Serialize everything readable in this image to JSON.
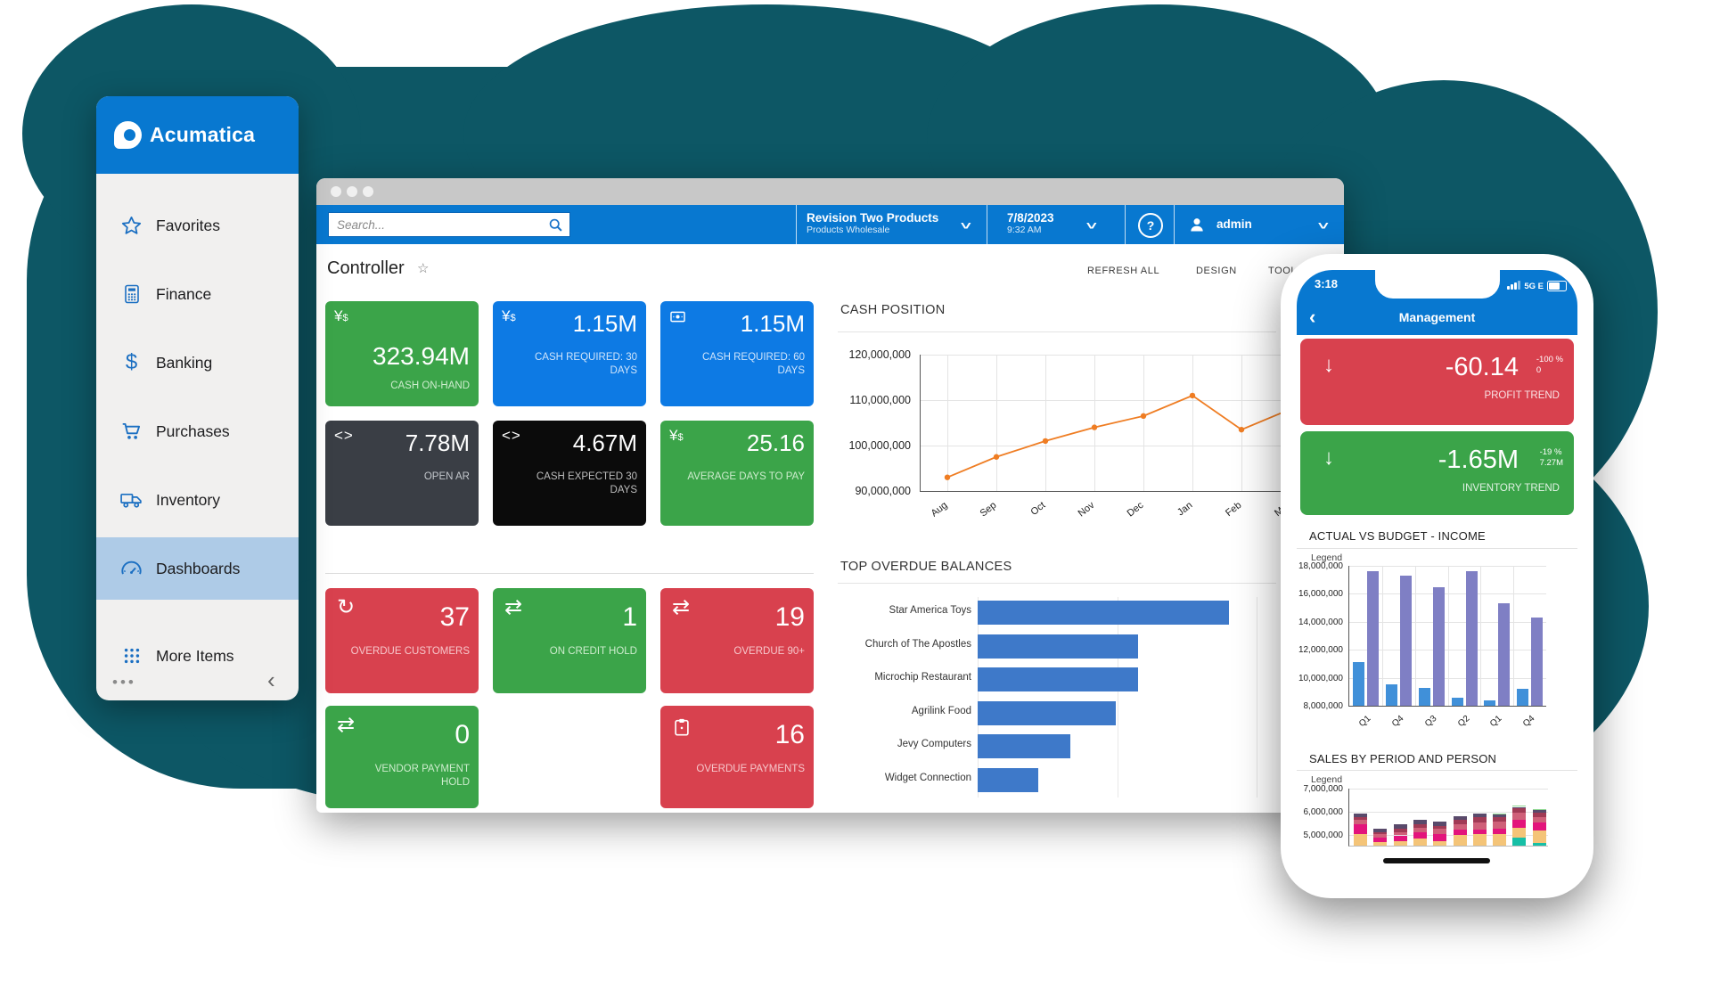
{
  "colors": {
    "brand_blue": "#0878d0",
    "backdrop_teal": "#0d5765",
    "tile_green": "#3ba449",
    "tile_blue": "#0d7ae4",
    "tile_slate": "#3a3e45",
    "tile_black": "#0b0b0b",
    "tile_red": "#d8414e",
    "selected_sidebar": "#aecbe7"
  },
  "app": {
    "brand": "Acumatica"
  },
  "sidebar": {
    "selected_index": 5,
    "items": [
      {
        "label": "Favorites",
        "icon": "star"
      },
      {
        "label": "Finance",
        "icon": "calculator"
      },
      {
        "label": "Banking",
        "icon": "dollar"
      },
      {
        "label": "Purchases",
        "icon": "cart"
      },
      {
        "label": "Inventory",
        "icon": "truck"
      },
      {
        "label": "Dashboards",
        "icon": "gauge"
      },
      {
        "label": "More Items",
        "icon": "grid"
      }
    ],
    "footer_dots": "•••",
    "collapse_glyph": "‹"
  },
  "window": {
    "search_placeholder": "Search...",
    "tenant": {
      "name": "Revision Two Products",
      "sub": "Products Wholesale"
    },
    "datetime": {
      "date": "7/8/2023",
      "time": "9:32 AM"
    },
    "help_glyph": "?",
    "user": "admin",
    "toolbar": [
      "REFRESH ALL",
      "DESIGN",
      "TOOLS"
    ],
    "page_title": "Controller",
    "star_glyph": "☆"
  },
  "kpi_top": [
    {
      "value": "323.94M",
      "label": "CASH ON-HAND",
      "icon": "currency",
      "style": "green",
      "label_color": "#cdeccd"
    },
    {
      "value": "1.15M",
      "label": "CASH REQUIRED: 30 DAYS",
      "icon": "currency",
      "style": "blue",
      "label_color": "#cfe4fb"
    },
    {
      "value": "1.15M",
      "label": "CASH REQUIRED: 60 DAYS",
      "icon": "banknote",
      "style": "blue",
      "label_color": "#cfe4fb"
    },
    {
      "value": "7.78M",
      "label": "OPEN AR",
      "icon": "code",
      "style": "slate",
      "label_color": "#c3c7cc"
    },
    {
      "value": "4.67M",
      "label": "CASH EXPECTED 30 DAYS",
      "icon": "code",
      "style": "black",
      "label_color": "#bdbdbd"
    },
    {
      "value": "25.16",
      "label": "AVERAGE DAYS TO PAY",
      "icon": "currency",
      "style": "green",
      "label_color": "#cdeccd"
    }
  ],
  "kpi_bottom": [
    {
      "value": "37",
      "label": "OVERDUE CUSTOMERS",
      "icon": "refresh",
      "style": "red",
      "label_color": "#f6c7cb"
    },
    {
      "value": "1",
      "label": "ON CREDIT HOLD",
      "icon": "swap",
      "style": "green",
      "label_color": "#cdeccd"
    },
    {
      "value": "19",
      "label": "OVERDUE 90+",
      "icon": "swap",
      "style": "red",
      "label_color": "#f6c7cb"
    },
    {
      "value": "0",
      "label": "VENDOR PAYMENT HOLD",
      "icon": "swap",
      "style": "green",
      "label_color": "#cdeccd"
    },
    {
      "value": "16",
      "label": "OVERDUE PAYMENTS",
      "icon": "clipboard",
      "style": "red",
      "label_color": "#f6c7cb"
    }
  ],
  "chart_data": [
    {
      "type": "line",
      "title": "CASH POSITION",
      "x": [
        "Aug",
        "Sep",
        "Oct",
        "Nov",
        "Dec",
        "Jan",
        "Feb",
        "Mar"
      ],
      "values": [
        93000000,
        97500000,
        101000000,
        104000000,
        106500000,
        111000000,
        103500000,
        108000000
      ],
      "ylim": [
        90000000,
        120000000
      ],
      "yticks": [
        "120,000,000",
        "110,000,000",
        "100,000,000",
        "90,000,000"
      ],
      "line_color": "#ef7d23",
      "grid": true,
      "legend_position": "none"
    },
    {
      "type": "bar",
      "orientation": "horizontal",
      "title": "TOP OVERDUE BALANCES",
      "categories": [
        "Star America Toys",
        "Church of The Apostles",
        "Microchip Restaurant",
        "Agrilink Food",
        "Jevy Computers",
        "Widget Connection"
      ],
      "values": [
        100,
        64,
        64,
        55,
        37,
        24
      ],
      "scale_note": "relative % of longest bar (no axis labels shown)",
      "bar_color": "#3e79c9",
      "legend_position": "none"
    },
    {
      "type": "bar",
      "title": "ACTUAL VS BUDGET - INCOME",
      "legend_label": "Legend",
      "categories": [
        "Q1",
        "Q4",
        "Q3",
        "Q2",
        "Q1",
        "Q4"
      ],
      "series": [
        {
          "name": "Actual",
          "color": "#4090d9",
          "values": [
            11100000,
            9500000,
            9300000,
            8600000,
            8400000,
            9200000
          ]
        },
        {
          "name": "Budget",
          "color": "#7f7fc4",
          "values": [
            17650000,
            17300000,
            16500000,
            17600000,
            15300000,
            14300000
          ]
        }
      ],
      "ylim": [
        8000000,
        18000000
      ],
      "yticks": [
        "18,000,000",
        "16,000,000",
        "14,000,000",
        "12,000,000",
        "10,000,000",
        "8,000,000"
      ],
      "grid": true
    },
    {
      "type": "stacked-bar",
      "title": "SALES BY PERIOD AND PERSON",
      "legend_label": "Legend",
      "ylim": [
        4500000,
        7000000
      ],
      "yticks": [
        "7,000,000",
        "6,000,000",
        "5,000,000"
      ],
      "segment_colors": {
        "tan": "#f4c478",
        "magenta": "#e3147c",
        "rose": "#cf6079",
        "maroon": "#a13a55",
        "slate": "#594a6b",
        "teal": "#17bfa6",
        "green": "#8ed791"
      },
      "bars": [
        {
          "segments": [
            [
              "tan",
              500000
            ],
            [
              "magenta",
              450000
            ],
            [
              "rose",
              200000
            ],
            [
              "maroon",
              120000
            ],
            [
              "slate",
              130000
            ]
          ]
        },
        {
          "segments": [
            [
              "tan",
              150000
            ],
            [
              "magenta",
              200000
            ],
            [
              "rose",
              150000
            ],
            [
              "maroon",
              100000
            ],
            [
              "slate",
              150000
            ]
          ]
        },
        {
          "segments": [
            [
              "tan",
              200000
            ],
            [
              "magenta",
              250000
            ],
            [
              "rose",
              150000
            ],
            [
              "maroon",
              150000
            ],
            [
              "slate",
              200000
            ]
          ]
        },
        {
          "segments": [
            [
              "tan",
              300000
            ],
            [
              "magenta",
              300000
            ],
            [
              "rose",
              200000
            ],
            [
              "maroon",
              150000
            ],
            [
              "slate",
              200000
            ]
          ]
        },
        {
          "segments": [
            [
              "tan",
              200000
            ],
            [
              "magenta",
              300000
            ],
            [
              "rose",
              250000
            ],
            [
              "maroon",
              100000
            ],
            [
              "slate",
              200000
            ]
          ]
        },
        {
          "segments": [
            [
              "tan",
              450000
            ],
            [
              "magenta",
              250000
            ],
            [
              "rose",
              250000
            ],
            [
              "maroon",
              200000
            ],
            [
              "slate",
              150000
            ]
          ]
        },
        {
          "segments": [
            [
              "tan",
              500000
            ],
            [
              "magenta",
              200000
            ],
            [
              "rose",
              300000
            ],
            [
              "maroon",
              250000
            ],
            [
              "slate",
              150000
            ]
          ]
        },
        {
          "segments": [
            [
              "tan",
              500000
            ],
            [
              "magenta",
              250000
            ],
            [
              "rose",
              300000
            ],
            [
              "maroon",
              200000
            ],
            [
              "slate",
              100000
            ],
            [
              "green",
              50000
            ]
          ]
        },
        {
          "segments": [
            [
              "teal",
              350000
            ],
            [
              "tan",
              450000
            ],
            [
              "magenta",
              350000
            ],
            [
              "rose",
              300000
            ],
            [
              "maroon",
              200000
            ],
            [
              "slate",
              50000
            ],
            [
              "green",
              50000
            ]
          ]
        },
        {
          "segments": [
            [
              "teal",
              100000
            ],
            [
              "tan",
              550000
            ],
            [
              "magenta",
              350000
            ],
            [
              "rose",
              250000
            ],
            [
              "maroon",
              200000
            ],
            [
              "slate",
              100000
            ],
            [
              "green",
              50000
            ]
          ]
        }
      ]
    }
  ],
  "phone": {
    "status": {
      "time": "3:18",
      "carrier": "5G E"
    },
    "nav": {
      "back_glyph": "‹",
      "title": "Management"
    },
    "tiles": [
      {
        "value": "-60.14",
        "sup_top": "-100 %",
        "sup_bottom": "0",
        "label": "PROFIT TREND",
        "style": "red"
      },
      {
        "value": "-1.65M",
        "sup_top": "-19 %",
        "sup_bottom": "7.27M",
        "label": "INVENTORY TREND",
        "style": "green"
      }
    ]
  }
}
